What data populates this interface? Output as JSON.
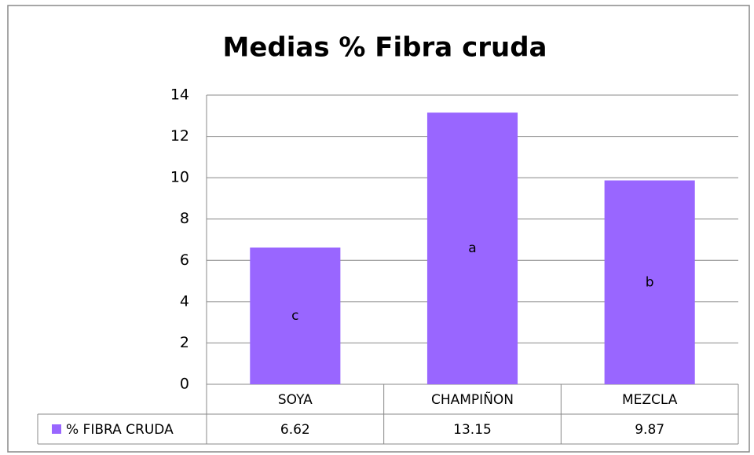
{
  "chart_data": {
    "type": "bar",
    "title": "Medias % Fibra cruda",
    "categories": [
      "SOYA",
      "CHAMPIÑON",
      "MEZCLA"
    ],
    "series": [
      {
        "name": "% FIBRA CRUDA",
        "color": "#9966ff",
        "values": [
          6.62,
          13.15,
          9.87
        ]
      }
    ],
    "bar_labels": [
      "c",
      "a",
      "b"
    ],
    "ylim": [
      0,
      14
    ],
    "yticks": [
      0,
      2,
      4,
      6,
      8,
      10,
      12,
      14
    ],
    "grid": true,
    "data_table": true
  }
}
